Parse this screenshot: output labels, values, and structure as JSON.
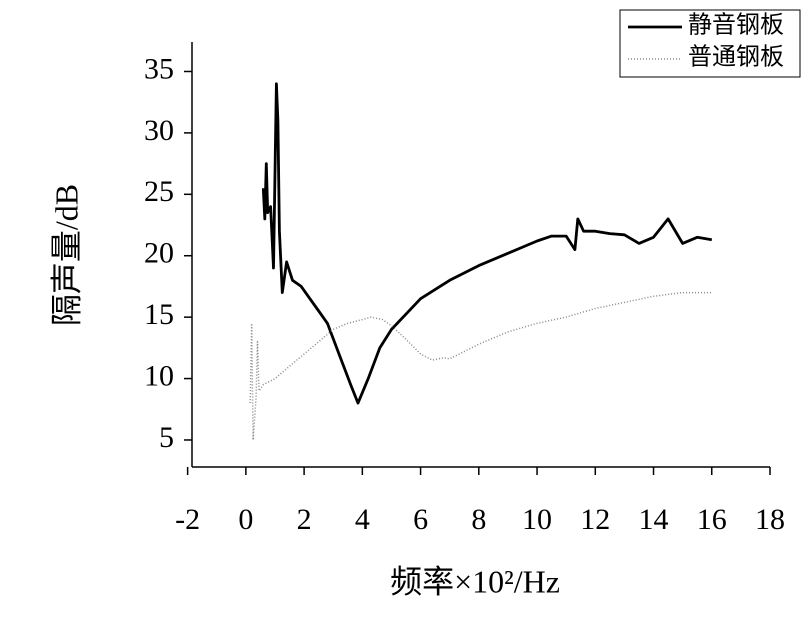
{
  "chart_data": {
    "type": "line",
    "xlabel": "频率×10²/Hz",
    "ylabel": "隔声量/dB",
    "xlim": [
      -1.85,
      18
    ],
    "ylim": [
      2.8,
      37.4
    ],
    "xticks": [
      -2,
      0,
      2,
      4,
      6,
      8,
      10,
      12,
      14,
      16,
      18
    ],
    "yticks": [
      5,
      10,
      15,
      20,
      25,
      30,
      35
    ],
    "legend": "upper right",
    "series": [
      {
        "name": "静音钢板",
        "color": "#000000",
        "style": "solid",
        "x": [
          0.6,
          0.65,
          0.7,
          0.75,
          0.85,
          0.95,
          1.05,
          1.1,
          1.15,
          1.25,
          1.4,
          1.6,
          1.9,
          2.2,
          2.5,
          2.8,
          3.2,
          3.6,
          3.85,
          4.2,
          4.6,
          5,
          6,
          7,
          8,
          9,
          10,
          10.5,
          11,
          11.3,
          11.4,
          11.6,
          12,
          12.5,
          13,
          13.5,
          14,
          14.5,
          15,
          15.5,
          16
        ],
        "values": [
          25.5,
          23,
          27.5,
          23.5,
          24,
          19,
          34,
          31,
          22,
          17,
          19.5,
          18,
          17.5,
          16.5,
          15.5,
          14.5,
          12,
          9.5,
          8,
          10,
          12.5,
          14,
          16.5,
          18,
          19.2,
          20.2,
          21.2,
          21.6,
          21.6,
          20.5,
          23,
          22,
          22,
          21.8,
          21.7,
          21,
          21.5,
          23,
          21,
          21.5,
          21.3
        ]
      },
      {
        "name": "普通钢板",
        "color": "#888888",
        "style": "dotted",
        "x": [
          0.15,
          0.2,
          0.25,
          0.35,
          0.4,
          0.45,
          0.6,
          1,
          1.5,
          2,
          2.5,
          3,
          3.5,
          4,
          4.3,
          4.7,
          5,
          5.5,
          6,
          6.4,
          6.8,
          7,
          8,
          9,
          10,
          11,
          12,
          13,
          14,
          15,
          16
        ],
        "values": [
          8,
          14.5,
          5,
          8.5,
          13,
          9,
          9.5,
          10,
          11,
          12,
          13,
          14,
          14.5,
          14.8,
          15,
          14.8,
          14.3,
          13.2,
          12,
          11.5,
          11.7,
          11.6,
          12.8,
          13.8,
          14.5,
          15,
          15.7,
          16.2,
          16.7,
          17,
          17
        ]
      }
    ]
  }
}
